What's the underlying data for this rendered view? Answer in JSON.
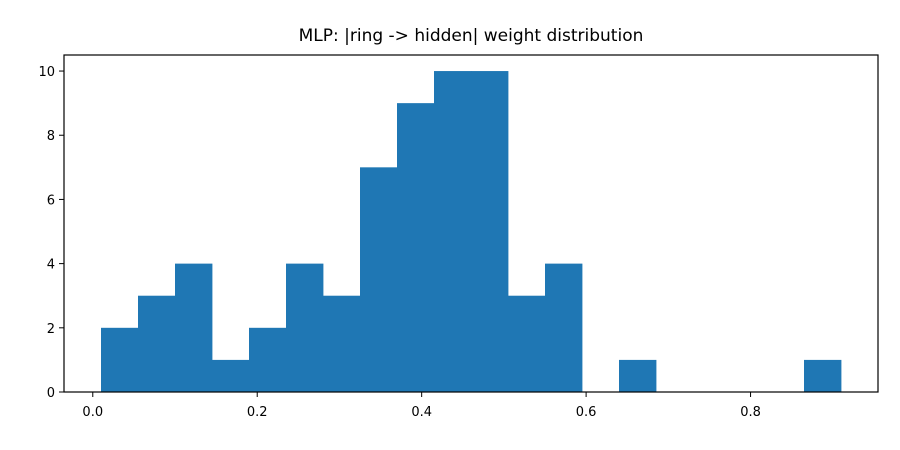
{
  "chart_data": {
    "type": "bar",
    "title": "MLP: |ring -> hidden| weight distribution",
    "xlabel": "",
    "ylabel": "",
    "bin_start": 0.01,
    "bin_width": 0.045,
    "values": [
      2,
      3,
      4,
      1,
      2,
      4,
      3,
      7,
      9,
      10,
      10,
      3,
      4,
      0,
      1,
      0,
      0,
      0,
      0,
      1
    ],
    "xlim": [
      -0.035,
      0.955
    ],
    "ylim": [
      0,
      10.5
    ],
    "xticks": [
      0.0,
      0.2,
      0.4,
      0.6,
      0.8
    ],
    "xtick_labels": [
      "0.0",
      "0.2",
      "0.4",
      "0.6",
      "0.8"
    ],
    "yticks": [
      0,
      2,
      4,
      6,
      8,
      10
    ],
    "ytick_labels": [
      "0",
      "2",
      "4",
      "6",
      "8",
      "10"
    ],
    "bar_color": "#1f77b4",
    "grid": false,
    "legend": "none"
  }
}
